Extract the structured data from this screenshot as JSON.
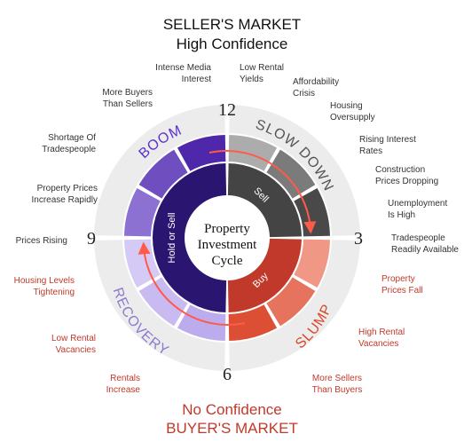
{
  "header": {
    "line1": "SELLER'S MARKET",
    "line2": "High Confidence"
  },
  "footer": {
    "line1": "No Confidence",
    "line2": "BUYER'S MARKET"
  },
  "center": {
    "line1": "Property",
    "line2": "Investment",
    "line3": "Cycle"
  },
  "clock": {
    "top": "12",
    "right": "3",
    "bottom": "6",
    "left": "9"
  },
  "phases": {
    "boom": "BOOM",
    "slowdown": "SLOW DOWN",
    "slump": "SLUMP",
    "recovery": "RECOVERY"
  },
  "inner_labels": {
    "sell": "Sell",
    "buy": "Buy",
    "hold": "Hold or Sell"
  },
  "colors": {
    "boom": "#4b22a8",
    "boom_light": "#9c85dc",
    "slowdown": "#3d3d3d",
    "slowdown_light": "#b8b8b8",
    "slump": "#d9462a",
    "slump_light": "#f3a08f",
    "recovery": "#b9a8ec",
    "recovery_light": "#d8cdf7",
    "hold_ring": "#2a1670",
    "sell_ring": "#444444",
    "buy_ring": "#c0392b",
    "outer_band": "#ececec",
    "arrow": "#ff5a4a",
    "label_text": "#333333",
    "label_red": "#c0392b"
  },
  "labels": {
    "intense_media": "Intense Media\nInterest",
    "low_rental_yields": "Low Rental\nYields",
    "affordability": "Affordability\nCrisis",
    "housing_oversupply": "Housing\nOversupply",
    "rising_rates": "Rising Interest\nRates",
    "construction_prices": "Construction\nPrices Dropping",
    "unemployment": "Unemployment\nIs High",
    "tradespeople_available": "Tradespeople\nReadily Available",
    "prices_fall": "Property\nPrices Fall",
    "high_vacancies": "High Rental\nVacancies",
    "more_sellers": "More Sellers\nThan Buyers",
    "rentals_increase": "Rentals\nIncrease",
    "low_vacancies": "Low Rental\nVacancies",
    "housing_tightening": "Housing Levels\nTightening",
    "prices_rising": "Prices Rising",
    "prices_increase": "Property Prices\nIncrease Rapidly",
    "shortage_trades": "Shortage Of\nTradespeople",
    "more_buyers": "More Buyers\nThan Sellers"
  }
}
